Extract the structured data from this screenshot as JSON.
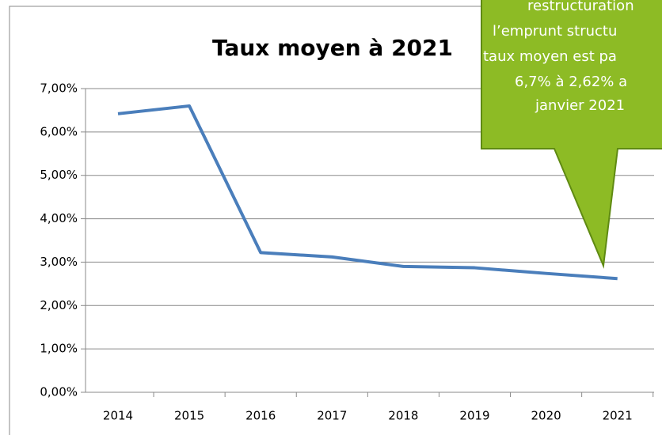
{
  "chart_data": {
    "type": "line",
    "title": "Taux moyen à 2021",
    "categories": [
      "2014",
      "2015",
      "2016",
      "2017",
      "2018",
      "2019",
      "2020",
      "2021"
    ],
    "series": [
      {
        "name": "Taux moyen",
        "color": "#4a7ebb",
        "values": [
          6.42,
          6.6,
          3.22,
          3.12,
          2.9,
          2.87,
          2.74,
          2.62
        ]
      }
    ],
    "ylim": [
      0,
      7
    ],
    "yticks": [
      {
        "value": 0,
        "label": "0,00%"
      },
      {
        "value": 1,
        "label": "1,00%"
      },
      {
        "value": 2,
        "label": "2,00%"
      },
      {
        "value": 3,
        "label": "3,00%"
      },
      {
        "value": 4,
        "label": "4,00%"
      },
      {
        "value": 5,
        "label": "5,00%"
      },
      {
        "value": 6,
        "label": "6,00%"
      },
      {
        "value": 7,
        "label": "7,00%"
      }
    ],
    "grid": true,
    "annotation": [
      "restructuration",
      "l’emprunt structu",
      "taux moyen est pa",
      "6,7% à 2,62% a",
      "janvier 2021"
    ]
  }
}
